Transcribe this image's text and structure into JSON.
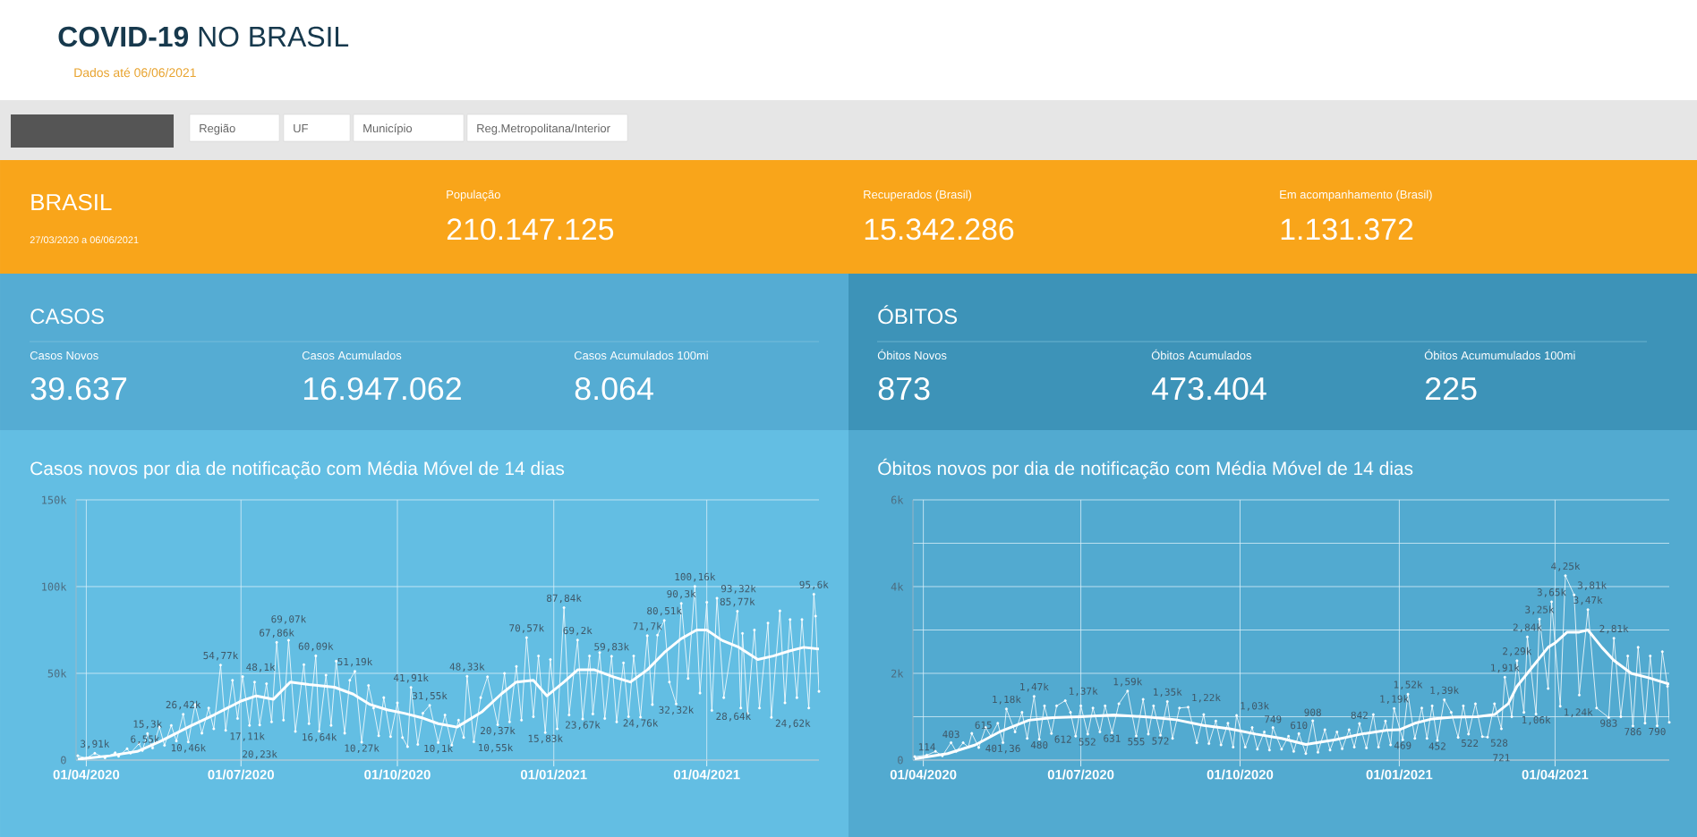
{
  "chart_data": [
    {
      "type": "other",
      "title": "**COVID-19** NO BRASIL",
      "subtitle": "Dados até 06/06/2021",
      "annotations": [
        "Região",
        "UF",
        "Município",
        "Reg.Metropolitana/Interior",
        "BRASIL",
        "27/03/2020 a 06/06/2021",
        "População",
        "210.147.125",
        "Recuperados (Brasil)",
        "15.342.286",
        "Em acompanhamento (Brasil)",
        "1.131.372",
        "CASOS",
        "Casos Novos",
        "39.637",
        "Casos Acumulados",
        "16.947.062",
        "Casos Acumulados 100mi",
        "8.064",
        "ÓBITOS",
        "Óbitos Novos",
        "873",
        "Óbitos Acumulados",
        "473.404",
        "Óbitos Acumumulados 100mi",
        "225"
      ]
    },
    {
      "type": "line",
      "title": "Casos novos por dia de notificação com Média Móvel de 14 dias",
      "xlim": [
        "2020-03-26",
        "2021-06-06"
      ],
      "xticks": [
        {
          "value": "2020-04-01",
          "label": "01/04/2020"
        },
        {
          "value": "2020-07-01",
          "label": "01/07/2020"
        },
        {
          "value": "2020-10-01",
          "label": "01/10/2020"
        },
        {
          "value": "2021-01-01",
          "label": "01/01/2021"
        },
        {
          "value": "2021-04-01",
          "label": "01/04/2021"
        }
      ],
      "ylim": [
        0,
        150000
      ],
      "yticks": [
        0,
        {
          "value": 50000,
          "label": "50k"
        },
        {
          "value": 100000,
          "label": "100k"
        },
        {
          "value": 150000,
          "label": "150k"
        }
      ],
      "grid": true,
      "series": [
        {
          "color": "#ffffff",
          "marker": "circle",
          "x": [
            "2020-03-27",
            "2020-04-01",
            "2020-04-06",
            "2020-04-12",
            "2020-04-18",
            "2020-04-20",
            "2020-04-25",
            "2020-04-27",
            "2020-05-02",
            "2020-05-04",
            "2020-05-07",
            "2020-05-10",
            "2020-05-14",
            "2020-05-17",
            "2020-05-21",
            "2020-05-24",
            "2020-05-28",
            "2020-05-31",
            "2020-06-04",
            "2020-06-08",
            "2020-06-12",
            "2020-06-15",
            "2020-06-19",
            "2020-06-22",
            "2020-06-26",
            "2020-06-29",
            "2020-07-02",
            "2020-07-06",
            "2020-07-09",
            "2020-07-12",
            "2020-07-16",
            "2020-07-19",
            "2020-07-22",
            "2020-07-26",
            "2020-07-29",
            "2020-08-02",
            "2020-08-07",
            "2020-08-10",
            "2020-08-14",
            "2020-08-16",
            "2020-08-20",
            "2020-08-23",
            "2020-08-26",
            "2020-08-31",
            "2020-09-03",
            "2020-09-06",
            "2020-09-10",
            "2020-09-14",
            "2020-09-17",
            "2020-09-20",
            "2020-09-23",
            "2020-09-27",
            "2020-10-01",
            "2020-10-04",
            "2020-10-07",
            "2020-10-09",
            "2020-10-13",
            "2020-10-16",
            "2020-10-20",
            "2020-10-25",
            "2020-10-29",
            "2020-11-02",
            "2020-11-06",
            "2020-11-09",
            "2020-11-11",
            "2020-11-15",
            "2020-11-19",
            "2020-11-23",
            "2020-11-29",
            "2020-12-03",
            "2020-12-06",
            "2020-12-10",
            "2020-12-13",
            "2020-12-16",
            "2020-12-20",
            "2020-12-23",
            "2020-12-27",
            "2020-12-30",
            "2021-01-03",
            "2021-01-07",
            "2021-01-10",
            "2021-01-15",
            "2021-01-18",
            "2021-01-22",
            "2021-01-24",
            "2021-01-28",
            "2021-01-31",
            "2021-02-04",
            "2021-02-07",
            "2021-02-11",
            "2021-02-14",
            "2021-02-17",
            "2021-02-21",
            "2021-02-25",
            "2021-02-28",
            "2021-03-03",
            "2021-03-07",
            "2021-03-10",
            "2021-03-14",
            "2021-03-17",
            "2021-03-21",
            "2021-03-25",
            "2021-03-28",
            "2021-04-01",
            "2021-04-04",
            "2021-04-07",
            "2021-04-11",
            "2021-04-19",
            "2021-04-21",
            "2021-04-22",
            "2021-04-25",
            "2021-04-29",
            "2021-05-02",
            "2021-05-07",
            "2021-05-09",
            "2021-05-14",
            "2021-05-17",
            "2021-05-20",
            "2021-05-24",
            "2021-05-27",
            "2021-05-31",
            "2021-06-03",
            "2021-06-04",
            "2021-06-06"
          ],
          "values": [
            2500,
            1100,
            3910,
            1300,
            4200,
            2200,
            6550,
            4000,
            9500,
            5500,
            15300,
            7000,
            19000,
            8500,
            20000,
            11000,
            26420,
            10460,
            32000,
            15500,
            30000,
            18000,
            54770,
            17110,
            46000,
            24000,
            48100,
            20000,
            45000,
            20230,
            44000,
            22000,
            67860,
            23000,
            69070,
            16500,
            55000,
            21000,
            60090,
            16640,
            49000,
            20000,
            57000,
            15500,
            46000,
            51190,
            10270,
            43000,
            30000,
            14000,
            36000,
            13500,
            33000,
            13000,
            7700,
            41910,
            9000,
            27000,
            31550,
            10100,
            26000,
            8600,
            23000,
            13000,
            48330,
            10550,
            36000,
            48000,
            20370,
            50000,
            22000,
            54000,
            23000,
            70570,
            25000,
            60000,
            15830,
            58000,
            18000,
            87840,
            26000,
            69200,
            23670,
            60000,
            26600,
            62000,
            24000,
            59830,
            22000,
            56000,
            25000,
            60000,
            24760,
            71700,
            32000,
            72000,
            80510,
            45000,
            32320,
            90300,
            47000,
            100160,
            38600,
            91000,
            28640,
            93320,
            36000,
            85770,
            30000,
            73000,
            27000,
            75000,
            30000,
            79000,
            24620,
            86000,
            33000,
            81000,
            36000,
            81000,
            30000,
            95600,
            83000,
            39600
          ],
          "value_labels": [
            null,
            null,
            "3,91k",
            null,
            null,
            null,
            "6,55k",
            null,
            null,
            null,
            "15,3k",
            null,
            null,
            null,
            null,
            null,
            "26,42k",
            "10,46k",
            null,
            null,
            null,
            null,
            "54,77k",
            "17,11k",
            null,
            null,
            "48,1k",
            null,
            null,
            "20,23k",
            null,
            null,
            "67,86k",
            null,
            "69,07k",
            null,
            null,
            null,
            "60,09k",
            "16,64k",
            null,
            null,
            null,
            null,
            null,
            "51,19k",
            "10,27k",
            null,
            null,
            null,
            null,
            null,
            null,
            null,
            null,
            "41,91k",
            null,
            null,
            "31,55k",
            "10,1k",
            null,
            null,
            null,
            null,
            "48,33k",
            "10,55k",
            null,
            null,
            "20,37k",
            null,
            null,
            null,
            null,
            "70,57k",
            null,
            null,
            "15,83k",
            null,
            null,
            "87,84k",
            null,
            "69,2k",
            "23,67k",
            null,
            null,
            null,
            null,
            "59,83k",
            null,
            null,
            null,
            null,
            "24,76k",
            "71,7k",
            null,
            null,
            "80,51k",
            null,
            "32,32k",
            "90,3k",
            null,
            "100,16k",
            null,
            null,
            "28,64k",
            "93,32k",
            null,
            "85,77k",
            null,
            null,
            null,
            null,
            null,
            null,
            "24,62k",
            null,
            null,
            null,
            null,
            null,
            null,
            "95,6k",
            null,
            null
          ]
        },
        {
          "color": "#ffffff",
          "marker": "none",
          "x": [
            "2020-03-27",
            "2020-04-01",
            "2020-04-15",
            "2020-05-01",
            "2020-05-15",
            "2020-06-01",
            "2020-06-15",
            "2020-07-01",
            "2020-07-10",
            "2020-07-20",
            "2020-07-30",
            "2020-08-10",
            "2020-08-25",
            "2020-09-05",
            "2020-09-15",
            "2020-09-25",
            "2020-10-05",
            "2020-10-15",
            "2020-10-25",
            "2020-11-05",
            "2020-11-20",
            "2020-12-01",
            "2020-12-10",
            "2020-12-20",
            "2020-12-28",
            "2021-01-07",
            "2021-01-15",
            "2021-01-25",
            "2021-02-05",
            "2021-02-15",
            "2021-02-25",
            "2021-03-07",
            "2021-03-17",
            "2021-03-26",
            "2021-04-01",
            "2021-04-10",
            "2021-04-20",
            "2021-05-01",
            "2021-05-10",
            "2021-05-20",
            "2021-05-28",
            "2021-06-06"
          ],
          "values": [
            500,
            1000,
            2500,
            5000,
            11000,
            19500,
            26000,
            34000,
            37000,
            35000,
            45000,
            43500,
            42000,
            38000,
            32000,
            29000,
            27000,
            24500,
            21000,
            19000,
            28000,
            38000,
            45000,
            46000,
            37000,
            45000,
            52000,
            52000,
            48000,
            45000,
            52000,
            62000,
            70000,
            75000,
            75000,
            69000,
            65000,
            58000,
            60000,
            63000,
            65000,
            64000
          ]
        }
      ]
    },
    {
      "type": "line",
      "title": "Óbitos novos por dia de notificação com Média Móvel de 14 dias",
      "xlim": [
        "2020-03-26",
        "2021-06-06"
      ],
      "xticks": [
        {
          "value": "2020-04-01",
          "label": "01/04/2020"
        },
        {
          "value": "2020-07-01",
          "label": "01/07/2020"
        },
        {
          "value": "2020-10-01",
          "label": "01/10/2020"
        },
        {
          "value": "2021-01-01",
          "label": "01/01/2021"
        },
        {
          "value": "2021-04-01",
          "label": "01/04/2021"
        }
      ],
      "ylim": [
        0,
        6000
      ],
      "yticks": [
        0,
        {
          "value": 1000,
          "label": null
        },
        {
          "value": 2000,
          "label": "2k"
        },
        {
          "value": 3000,
          "label": null
        },
        {
          "value": 4000,
          "label": "4k"
        },
        {
          "value": 5000,
          "label": null
        },
        {
          "value": 6000,
          "label": "6k"
        }
      ],
      "grid": true,
      "series": [
        {
          "color": "#ffffff",
          "marker": "circle",
          "x": [
            "2020-03-27",
            "2020-04-03",
            "2020-04-08",
            "2020-04-12",
            "2020-04-17",
            "2020-04-20",
            "2020-04-24",
            "2020-04-27",
            "2020-04-29",
            "2020-05-03",
            "2020-05-07",
            "2020-05-10",
            "2020-05-14",
            "2020-05-17",
            "2020-05-19",
            "2020-05-24",
            "2020-05-28",
            "2020-05-31",
            "2020-06-04",
            "2020-06-07",
            "2020-06-10",
            "2020-06-14",
            "2020-06-17",
            "2020-06-22",
            "2020-06-25",
            "2020-06-28",
            "2020-07-01",
            "2020-07-05",
            "2020-07-08",
            "2020-07-12",
            "2020-07-15",
            "2020-07-19",
            "2020-07-23",
            "2020-07-28",
            "2020-08-02",
            "2020-08-06",
            "2020-08-09",
            "2020-08-12",
            "2020-08-16",
            "2020-08-20",
            "2020-08-23",
            "2020-08-27",
            "2020-09-01",
            "2020-09-06",
            "2020-09-10",
            "2020-09-13",
            "2020-09-17",
            "2020-09-20",
            "2020-09-24",
            "2020-09-27",
            "2020-09-29",
            "2020-10-04",
            "2020-10-08",
            "2020-10-11",
            "2020-10-15",
            "2020-10-18",
            "2020-10-20",
            "2020-10-25",
            "2020-10-29",
            "2020-11-01",
            "2020-11-04",
            "2020-11-08",
            "2020-11-12",
            "2020-11-15",
            "2020-11-19",
            "2020-11-22",
            "2020-11-26",
            "2020-11-29",
            "2020-12-03",
            "2020-12-06",
            "2020-12-09",
            "2020-12-13",
            "2020-12-17",
            "2020-12-20",
            "2020-12-24",
            "2020-12-27",
            "2020-12-29",
            "2021-01-03",
            "2021-01-06",
            "2021-01-10",
            "2021-01-14",
            "2021-01-17",
            "2021-01-20",
            "2021-01-23",
            "2021-01-27",
            "2021-01-31",
            "2021-02-04",
            "2021-02-07",
            "2021-02-10",
            "2021-02-14",
            "2021-02-18",
            "2021-02-21",
            "2021-02-25",
            "2021-03-01",
            "2021-03-03",
            "2021-03-07",
            "2021-03-10",
            "2021-03-14",
            "2021-03-16",
            "2021-03-21",
            "2021-03-23",
            "2021-03-28",
            "2021-03-30",
            "2021-04-04",
            "2021-04-07",
            "2021-04-12",
            "2021-04-15",
            "2021-04-20",
            "2021-04-25",
            "2021-05-02",
            "2021-05-05",
            "2021-05-09",
            "2021-05-13",
            "2021-05-16",
            "2021-05-19",
            "2021-05-23",
            "2021-05-26",
            "2021-05-30",
            "2021-06-02",
            "2021-06-05",
            "2021-06-06"
          ],
          "values": [
            80,
            114,
            200,
            100,
            403,
            200,
            400,
            300,
            615,
            290,
            750,
            550,
            850,
            401.36,
            1180,
            650,
            1100,
            500,
            1470,
            480,
            1250,
            612,
            1250,
            1370,
            1100,
            552,
            1250,
            600,
            1200,
            650,
            1250,
            631,
            1300,
            1590,
            555,
            1400,
            600,
            1250,
            572,
            1350,
            500,
            1200,
            1220,
            400,
            1050,
            380,
            900,
            350,
            850,
            300,
            1030,
            300,
            750,
            250,
            650,
            230,
            749,
            250,
            550,
            200,
            610,
            150,
            908,
            180,
            700,
            230,
            650,
            260,
            700,
            300,
            842,
            280,
            1050,
            300,
            900,
            350,
            1190,
            469,
            1520,
            500,
            1200,
            500,
            1250,
            452,
            1390,
            1100,
            522,
            1250,
            600,
            1300,
            540,
            528,
            1300,
            721,
            1910,
            1000,
            2290,
            1100,
            2840,
            1060,
            3250,
            1650,
            3650,
            1240,
            4250,
            3810,
            1500,
            3470,
            1200,
            983,
            2810,
            1000,
            2400,
            786,
            2600,
            850,
            2400,
            790,
            2500,
            1700,
            870
          ],
          "value_labels": [
            null,
            "114",
            null,
            null,
            "403",
            null,
            null,
            null,
            "615",
            null,
            null,
            null,
            null,
            "401,36",
            "1,18k",
            null,
            null,
            null,
            "1,47k",
            "480",
            null,
            "612",
            null,
            "1,37k",
            null,
            "552",
            null,
            null,
            null,
            null,
            null,
            "631",
            null,
            "1,59k",
            "555",
            null,
            null,
            null,
            "572",
            "1,35k",
            null,
            null,
            "1,22k",
            null,
            null,
            null,
            null,
            null,
            null,
            null,
            "1,03k",
            null,
            null,
            null,
            null,
            null,
            "749",
            null,
            null,
            null,
            "610",
            null,
            "908",
            null,
            null,
            null,
            null,
            null,
            null,
            null,
            "842",
            null,
            null,
            null,
            null,
            null,
            "1,19k",
            "469",
            "1,52k",
            null,
            null,
            null,
            null,
            "452",
            "1,39k",
            null,
            "522",
            null,
            null,
            null,
            null,
            "528",
            null,
            "721",
            "1,91k",
            null,
            "2,29k",
            null,
            "2,84k",
            "1,06k",
            "3,25k",
            null,
            "3,65k",
            "1,24k",
            "4,25k",
            "3,81k",
            null,
            "3,47k",
            null,
            "983",
            "2,81k",
            null,
            null,
            "786",
            null,
            null,
            null,
            "790",
            null,
            null,
            null
          ]
        },
        {
          "color": "#ffffff",
          "marker": "none",
          "x": [
            "2020-03-27",
            "2020-04-15",
            "2020-05-01",
            "2020-05-15",
            "2020-06-01",
            "2020-06-15",
            "2020-07-01",
            "2020-07-20",
            "2020-08-10",
            "2020-08-25",
            "2020-09-10",
            "2020-09-25",
            "2020-10-10",
            "2020-10-25",
            "2020-11-08",
            "2020-11-25",
            "2020-12-10",
            "2020-12-25",
            "2021-01-01",
            "2021-01-10",
            "2021-01-20",
            "2021-02-01",
            "2021-02-15",
            "2021-02-25",
            "2021-03-05",
            "2021-03-10",
            "2021-03-20",
            "2021-03-28",
            "2021-04-01",
            "2021-04-08",
            "2021-04-15",
            "2021-04-20",
            "2021-04-28",
            "2021-05-05",
            "2021-05-15",
            "2021-05-25",
            "2021-06-06"
          ],
          "values": [
            30,
            150,
            350,
            650,
            920,
            980,
            1000,
            1040,
            990,
            930,
            800,
            720,
            600,
            500,
            360,
            470,
            600,
            690,
            700,
            850,
            950,
            990,
            1000,
            1050,
            1300,
            1700,
            2200,
            2600,
            2700,
            2950,
            2950,
            3000,
            2600,
            2300,
            2000,
            1900,
            1750
          ]
        }
      ]
    }
  ]
}
